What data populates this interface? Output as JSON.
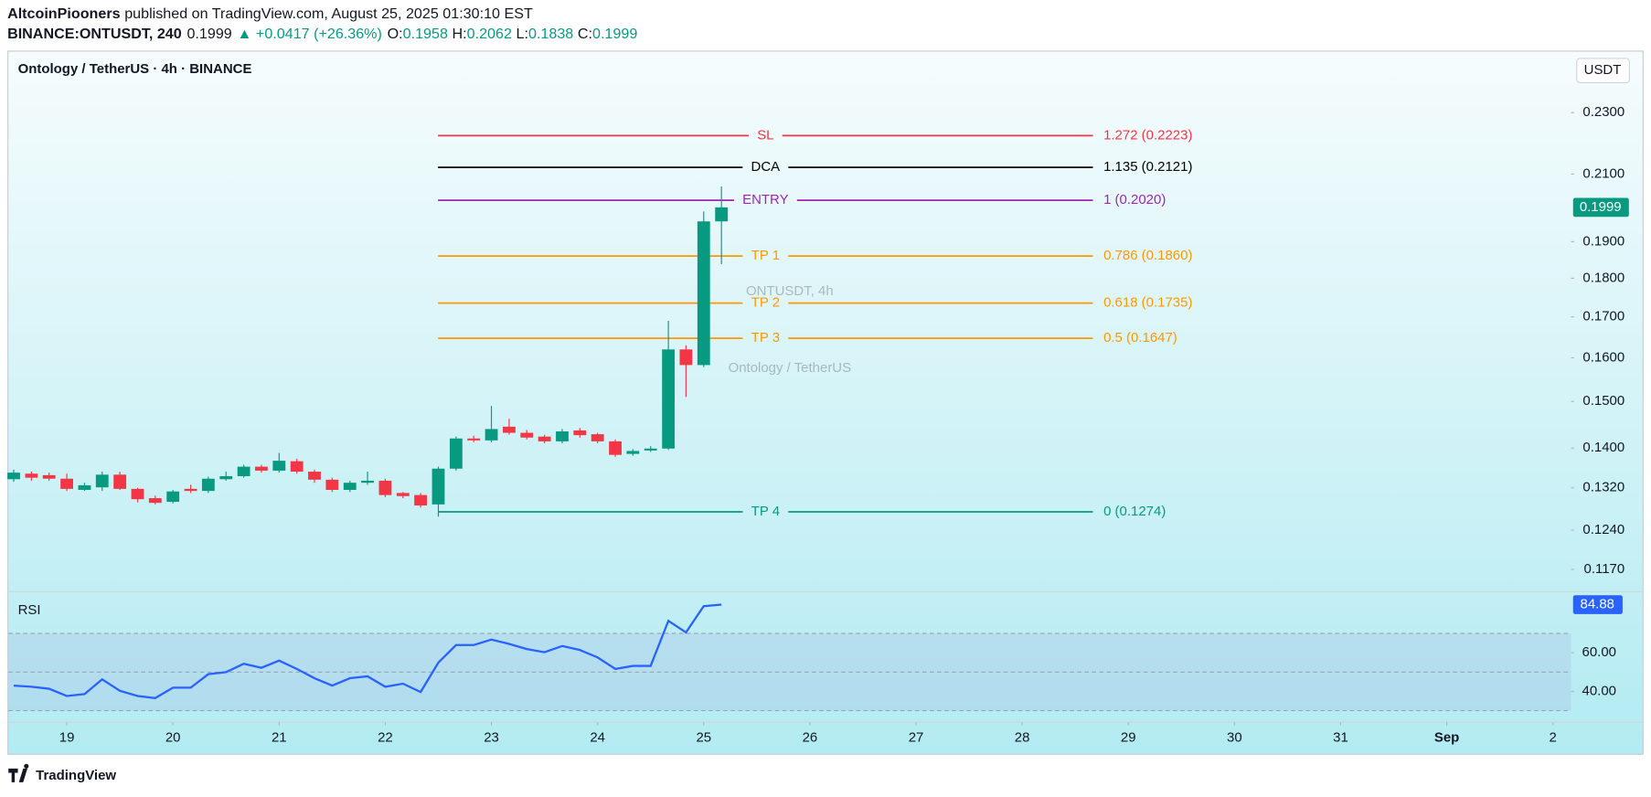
{
  "header": {
    "author": "AltcoinPiooners",
    "published": "published on TradingView.com, August 25, 2025 01:30:10 EST",
    "symbol": "BINANCE:ONTUSDT, 240",
    "last": "0.1999",
    "change": "▲ +0.0417 (+26.36%)",
    "o_label": "O:",
    "open": "0.1958",
    "h_label": "H:",
    "high": "0.2062",
    "l_label": "L:",
    "low": "0.1838",
    "c_label": "C:",
    "close": "0.1999"
  },
  "chart_data": {
    "type": "candlestick",
    "title": "Ontology / TetherUS · 4h · BINANCE",
    "currency": "USDT",
    "watermark": "ONTUSDT, 4h",
    "watermark_sub": "Ontology / TetherUS",
    "up_color": "#089981",
    "down_color": "#f23645",
    "log_scale": true,
    "x": [
      18.5,
      18.667,
      18.833,
      19,
      19.167,
      19.333,
      19.5,
      19.667,
      19.833,
      20,
      20.167,
      20.333,
      20.5,
      20.667,
      20.833,
      21,
      21.167,
      21.333,
      21.5,
      21.667,
      21.833,
      22,
      22.167,
      22.333,
      22.5,
      22.667,
      22.833,
      23,
      23.167,
      23.333,
      23.5,
      23.667,
      23.833,
      24,
      24.167,
      24.333,
      24.5,
      24.667,
      24.833,
      25,
      25.167
    ],
    "open": [
      0.1337,
      0.1348,
      0.1345,
      0.1338,
      0.1316,
      0.1321,
      0.1346,
      0.1318,
      0.13,
      0.1293,
      0.1318,
      0.1314,
      0.1337,
      0.1343,
      0.1362,
      0.1354,
      0.1373,
      0.1352,
      0.1336,
      0.1316,
      0.133,
      0.1334,
      0.131,
      0.1306,
      0.1288,
      0.1358,
      0.142,
      0.1416,
      0.1445,
      0.1432,
      0.1424,
      0.1414,
      0.1437,
      0.1429,
      0.1414,
      0.1388,
      0.1395,
      0.1399,
      0.162,
      0.1583,
      0.1958
    ],
    "high": [
      0.1356,
      0.1352,
      0.135,
      0.1348,
      0.133,
      0.1352,
      0.1352,
      0.132,
      0.1305,
      0.1316,
      0.1326,
      0.1342,
      0.1352,
      0.1366,
      0.1366,
      0.139,
      0.1378,
      0.1356,
      0.134,
      0.1334,
      0.1352,
      0.1338,
      0.1312,
      0.131,
      0.1362,
      0.1424,
      0.1426,
      0.149,
      0.1462,
      0.1438,
      0.1428,
      0.144,
      0.1442,
      0.1432,
      0.1418,
      0.1398,
      0.1404,
      0.169,
      0.163,
      0.1987,
      0.2062
    ],
    "low": [
      0.1332,
      0.1334,
      0.1334,
      0.1314,
      0.1314,
      0.1314,
      0.1316,
      0.1292,
      0.1288,
      0.129,
      0.131,
      0.131,
      0.1334,
      0.134,
      0.135,
      0.135,
      0.1348,
      0.133,
      0.1312,
      0.1312,
      0.1326,
      0.1302,
      0.13,
      0.1282,
      0.1265,
      0.1354,
      0.1412,
      0.1412,
      0.1428,
      0.1418,
      0.141,
      0.141,
      0.1422,
      0.141,
      0.1382,
      0.1384,
      0.1392,
      0.1396,
      0.151,
      0.1578,
      0.1838
    ],
    "close": [
      0.135,
      0.134,
      0.1338,
      0.1318,
      0.1325,
      0.1346,
      0.1318,
      0.1298,
      0.1291,
      0.1313,
      0.1314,
      0.1338,
      0.1343,
      0.1362,
      0.1354,
      0.1374,
      0.1352,
      0.1336,
      0.1316,
      0.133,
      0.1334,
      0.1306,
      0.1304,
      0.1286,
      0.1358,
      0.142,
      0.1416,
      0.144,
      0.1432,
      0.1422,
      0.1414,
      0.1435,
      0.1427,
      0.1414,
      0.1386,
      0.1394,
      0.1399,
      0.162,
      0.1583,
      0.1958,
      0.1999
    ],
    "xlim": [
      18.45,
      33.17
    ],
    "xticks": [
      19,
      20,
      21,
      22,
      23,
      24,
      25,
      26,
      27,
      28,
      29,
      30,
      31,
      {
        "value": 32,
        "label": "Sep"
      },
      {
        "value": 33,
        "label": "2"
      }
    ],
    "ylim": [
      0.1132,
      0.2521
    ],
    "yticks": [
      {
        "value": 0.23,
        "label": "0.2300"
      },
      {
        "value": 0.21,
        "label": "0.2100"
      },
      {
        "value": 0.19,
        "label": "0.1900"
      },
      {
        "value": 0.18,
        "label": "0.1800"
      },
      {
        "value": 0.17,
        "label": "0.1700"
      },
      {
        "value": 0.16,
        "label": "0.1600"
      },
      {
        "value": 0.15,
        "label": "0.1500"
      },
      {
        "value": 0.14,
        "label": "0.1400"
      },
      {
        "value": 0.132,
        "label": "0.1320"
      },
      {
        "value": 0.124,
        "label": "0.1240"
      },
      {
        "value": 0.117,
        "label": "0.1170"
      }
    ],
    "last_price_label": "0.1999",
    "levels": [
      {
        "name": "SL",
        "label": "1.272 (0.2223)",
        "value": 0.2223,
        "color": "#f23645"
      },
      {
        "name": "DCA",
        "label": "1.135 (0.2121)",
        "value": 0.2121,
        "color": "#000000"
      },
      {
        "name": "ENTRY",
        "label": "1 (0.2020)",
        "value": 0.202,
        "color": "#9c27b0"
      },
      {
        "name": "TP 1",
        "label": "0.786 (0.1860)",
        "value": 0.186,
        "color": "#ff9800"
      },
      {
        "name": "TP 2",
        "label": "0.618 (0.1735)",
        "value": 0.1735,
        "color": "#ff9800"
      },
      {
        "name": "TP 3",
        "label": "0.5 (0.1647)",
        "value": 0.1647,
        "color": "#ff9800"
      },
      {
        "name": "TP 4",
        "label": "0 (0.1274)",
        "value": 0.1274,
        "color": "#089981"
      }
    ],
    "rsi": {
      "name": "RSI",
      "color": "#2962ff",
      "values": [
        43,
        42.4,
        41.4,
        37.6,
        38.6,
        46.2,
        40.3,
        37.6,
        36.5,
        41.9,
        41.9,
        48.9,
        50,
        54.3,
        52.2,
        55.9,
        51.6,
        46.8,
        43,
        46.8,
        47.8,
        42.4,
        44,
        39.7,
        54.9,
        64,
        64,
        66.8,
        64.6,
        61.9,
        60.3,
        63.5,
        61.4,
        57.6,
        51.6,
        53.2,
        53.2,
        76.5,
        70.5,
        84.1,
        84.88
      ],
      "ylim": [
        24.05,
        91.6
      ],
      "yticks": [
        {
          "value": 60,
          "label": "60.00"
        },
        {
          "value": 40,
          "label": "40.00"
        }
      ],
      "levels": [
        30,
        50,
        70
      ],
      "last_label": "84.88"
    }
  },
  "footer": {
    "brand": "TradingView"
  }
}
